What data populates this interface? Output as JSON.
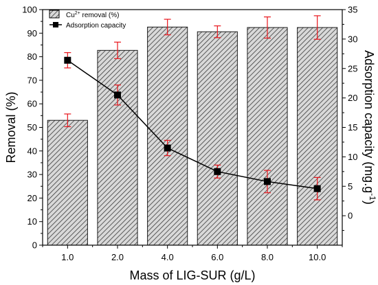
{
  "chart_data": {
    "type": "bar",
    "categories": [
      "1.0",
      "2.0",
      "4.0",
      "6.0",
      "8.0",
      "10.0"
    ],
    "xlabel": "Mass of LIG-SUR (g/L)",
    "ylabel": "Removal (%)",
    "y2label": "Adsorption capacity (mg.g",
    "y2label_sup": "-1",
    "y2label_close": ")",
    "ylim": [
      0,
      100
    ],
    "y2lim": [
      -5,
      35
    ],
    "yticks": [
      0,
      10,
      20,
      30,
      40,
      50,
      60,
      70,
      80,
      90,
      100
    ],
    "y2ticks": [
      0,
      5,
      10,
      15,
      20,
      25,
      30,
      35
    ],
    "grid": false,
    "legend_position": "top-left",
    "series": [
      {
        "name_prefix": "Cu",
        "name_sup": "2+",
        "name_suffix": " removal (%)",
        "type": "bar",
        "axis": "left",
        "values": [
          53,
          82.7,
          92.6,
          90.6,
          92.4,
          92.4
        ],
        "errors": [
          2.7,
          3.5,
          3.3,
          2.5,
          4.5,
          5.0
        ],
        "fill": "hatched-gray"
      },
      {
        "name": "Adsorption capacity",
        "type": "line",
        "axis": "right",
        "values": [
          26.4,
          20.5,
          11.5,
          7.5,
          5.8,
          4.6
        ],
        "errors": [
          1.3,
          1.7,
          1.3,
          1.1,
          1.9,
          1.9
        ],
        "marker": "square"
      }
    ],
    "colors": {
      "error_bar": "#e8141b",
      "bar_fill": "#d9d9d9",
      "hatch": "#333333",
      "line": "#000000"
    }
  }
}
